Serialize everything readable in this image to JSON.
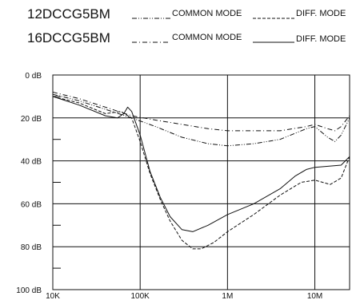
{
  "legend": {
    "rows": [
      {
        "model": "12DCCG5BM",
        "entries": [
          {
            "label": "COMMON MODE",
            "dash": "dash-dot-dot"
          },
          {
            "label": "DIFF. MODE",
            "dash": "dash"
          }
        ]
      },
      {
        "model": "16DCCG5BM",
        "entries": [
          {
            "label": "COMMON MODE",
            "dash": "dash-dot"
          },
          {
            "label": "DIFF. MODE",
            "dash": "solid"
          }
        ]
      }
    ]
  },
  "chart_data": {
    "type": "line",
    "x_scale": "log",
    "xlim": [
      10000,
      25000000
    ],
    "ylim": [
      0,
      100
    ],
    "y_inverted": true,
    "xticks": [
      {
        "value": 10000,
        "label": "10K"
      },
      {
        "value": 100000,
        "label": "100K"
      },
      {
        "value": 1000000,
        "label": "1M"
      },
      {
        "value": 10000000,
        "label": "10M"
      }
    ],
    "yticks": [
      {
        "value": 0,
        "label": "0 dB"
      },
      {
        "value": 20,
        "label": "20 dB"
      },
      {
        "value": 40,
        "label": "40 dB"
      },
      {
        "value": 60,
        "label": "60 dB"
      },
      {
        "value": 80,
        "label": "80 dB"
      },
      {
        "value": 100,
        "label": "100 dB"
      }
    ],
    "series": [
      {
        "name": "12DCCG5BM COMMON MODE",
        "dash": "dash-dot-dot",
        "points": [
          [
            10000,
            9
          ],
          [
            20000,
            12
          ],
          [
            40000,
            16
          ],
          [
            80000,
            20
          ],
          [
            150000,
            24
          ],
          [
            300000,
            29
          ],
          [
            600000,
            32
          ],
          [
            1000000,
            33
          ],
          [
            2000000,
            32
          ],
          [
            4000000,
            30
          ],
          [
            8000000,
            25
          ],
          [
            10000000,
            24
          ],
          [
            14000000,
            29
          ],
          [
            17000000,
            31
          ],
          [
            20000000,
            28
          ],
          [
            25000000,
            20
          ]
        ]
      },
      {
        "name": "12DCCG5BM DIFF. MODE",
        "dash": "dash",
        "points": [
          [
            10000,
            10
          ],
          [
            20000,
            13
          ],
          [
            40000,
            18
          ],
          [
            60000,
            17
          ],
          [
            80000,
            20
          ],
          [
            100000,
            31
          ],
          [
            130000,
            46
          ],
          [
            170000,
            58
          ],
          [
            220000,
            68
          ],
          [
            300000,
            77
          ],
          [
            400000,
            81
          ],
          [
            500000,
            81
          ],
          [
            700000,
            78
          ],
          [
            1000000,
            73
          ],
          [
            2000000,
            65
          ],
          [
            4000000,
            56
          ],
          [
            7000000,
            50
          ],
          [
            10000000,
            49
          ],
          [
            15000000,
            51
          ],
          [
            20000000,
            48
          ],
          [
            25000000,
            38
          ]
        ]
      },
      {
        "name": "16DCCG5BM COMMON MODE",
        "dash": "dash-dot",
        "points": [
          [
            10000,
            8
          ],
          [
            20000,
            11
          ],
          [
            40000,
            15
          ],
          [
            80000,
            19
          ],
          [
            150000,
            21
          ],
          [
            300000,
            23
          ],
          [
            600000,
            25
          ],
          [
            1000000,
            26
          ],
          [
            2000000,
            26
          ],
          [
            4000000,
            26
          ],
          [
            8000000,
            24
          ],
          [
            10000000,
            23
          ],
          [
            14000000,
            25
          ],
          [
            17000000,
            26
          ],
          [
            20000000,
            24
          ],
          [
            25000000,
            19
          ]
        ]
      },
      {
        "name": "16DCCG5BM DIFF. MODE",
        "dash": "solid",
        "points": [
          [
            10000,
            10
          ],
          [
            20000,
            14
          ],
          [
            40000,
            19
          ],
          [
            55000,
            20
          ],
          [
            65000,
            18
          ],
          [
            72000,
            15
          ],
          [
            80000,
            17
          ],
          [
            100000,
            28
          ],
          [
            130000,
            45
          ],
          [
            170000,
            57
          ],
          [
            220000,
            66
          ],
          [
            300000,
            72
          ],
          [
            400000,
            73
          ],
          [
            600000,
            70
          ],
          [
            1000000,
            65
          ],
          [
            2000000,
            60
          ],
          [
            4000000,
            53
          ],
          [
            6000000,
            47
          ],
          [
            8000000,
            44
          ],
          [
            10000000,
            43
          ],
          [
            20000000,
            42
          ],
          [
            25000000,
            38
          ]
        ]
      }
    ]
  }
}
